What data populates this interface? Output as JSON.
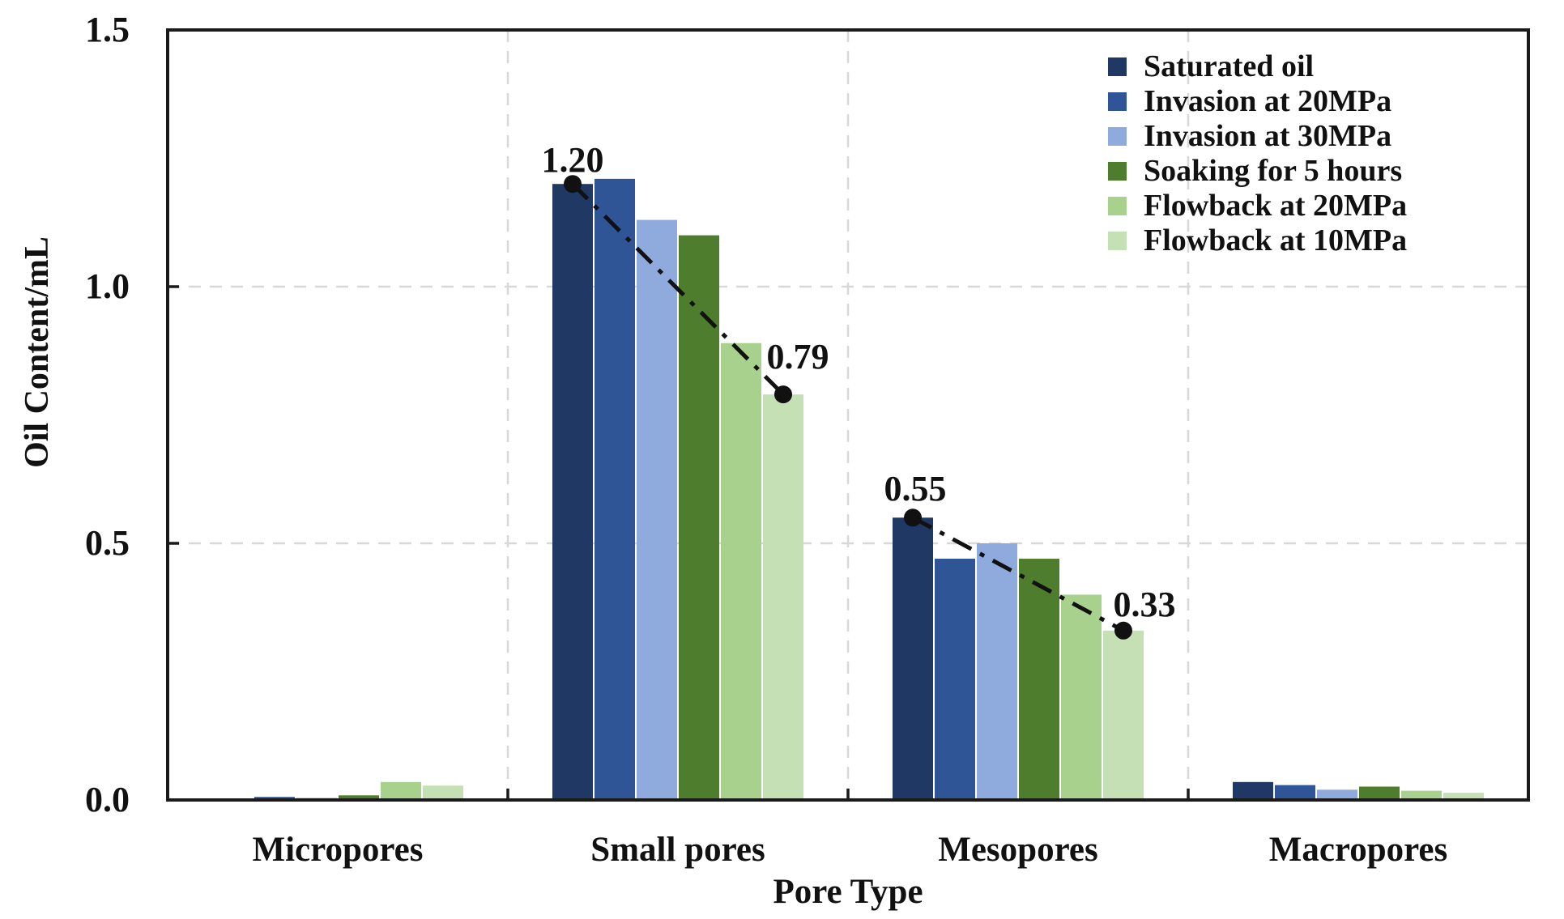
{
  "figure": {
    "background": "#ffffff",
    "axis_color": "#1a1a1a",
    "gridline_color": "#d8d8d8",
    "annotation_line_color": "#111111"
  },
  "axes": {
    "ytick_labels": [
      "1.5",
      "1.0",
      "0.5",
      "0.0"
    ],
    "xlabel": "Pore Type",
    "ylabel": "Oil Content/mL"
  },
  "chart_data": {
    "type": "bar",
    "title": "",
    "xlabel": "Pore Type",
    "ylabel": "Oil Content/mL",
    "ylim": [
      0,
      1.5
    ],
    "yticks": [
      0.0,
      0.5,
      1.0,
      1.5
    ],
    "grid": "dashed light-gray horizontal lines at 0.5 and 1.0; dashed vertical lines at category boundaries",
    "legend_position": "top-right inside plot, no frame",
    "categories": [
      "Micropores",
      "Small pores",
      "Mesopores",
      "Macropores"
    ],
    "series": [
      {
        "name": "Saturated oil",
        "color": "#1F3864",
        "values": [
          0.002,
          1.2,
          0.55,
          0.035
        ]
      },
      {
        "name": "Invasion at 20MPa",
        "color": "#2F5597",
        "values": [
          0.006,
          1.21,
          0.47,
          0.029
        ]
      },
      {
        "name": "Invasion at 30MPa",
        "color": "#8FAADC",
        "values": [
          0.004,
          1.13,
          0.5,
          0.02
        ]
      },
      {
        "name": "Soaking for 5 hours",
        "color": "#4E7E2D",
        "values": [
          0.009,
          1.1,
          0.47,
          0.026
        ]
      },
      {
        "name": "Flowback at 20MPa",
        "color": "#A9D18E",
        "values": [
          0.035,
          0.89,
          0.4,
          0.018
        ]
      },
      {
        "name": "Flowback at 10MPa",
        "color": "#C5E0B4",
        "values": [
          0.028,
          0.79,
          0.33,
          0.014
        ]
      }
    ],
    "annotations": [
      {
        "label": "1.20",
        "category": "Small pores",
        "series": "Saturated oil",
        "value": 1.2
      },
      {
        "label": "0.79",
        "category": "Small pores",
        "series": "Flowback at 10MPa",
        "value": 0.79
      },
      {
        "label": "0.55",
        "category": "Mesopores",
        "series": "Saturated oil",
        "value": 0.55
      },
      {
        "label": "0.33",
        "category": "Mesopores",
        "series": "Flowback at 10MPa",
        "value": 0.33
      }
    ],
    "connector_lines": [
      {
        "from_annotation": 0,
        "to_annotation": 1,
        "style": "dash-dot with filled round end markers"
      },
      {
        "from_annotation": 2,
        "to_annotation": 3,
        "style": "dash-dot with filled round end markers"
      }
    ]
  }
}
